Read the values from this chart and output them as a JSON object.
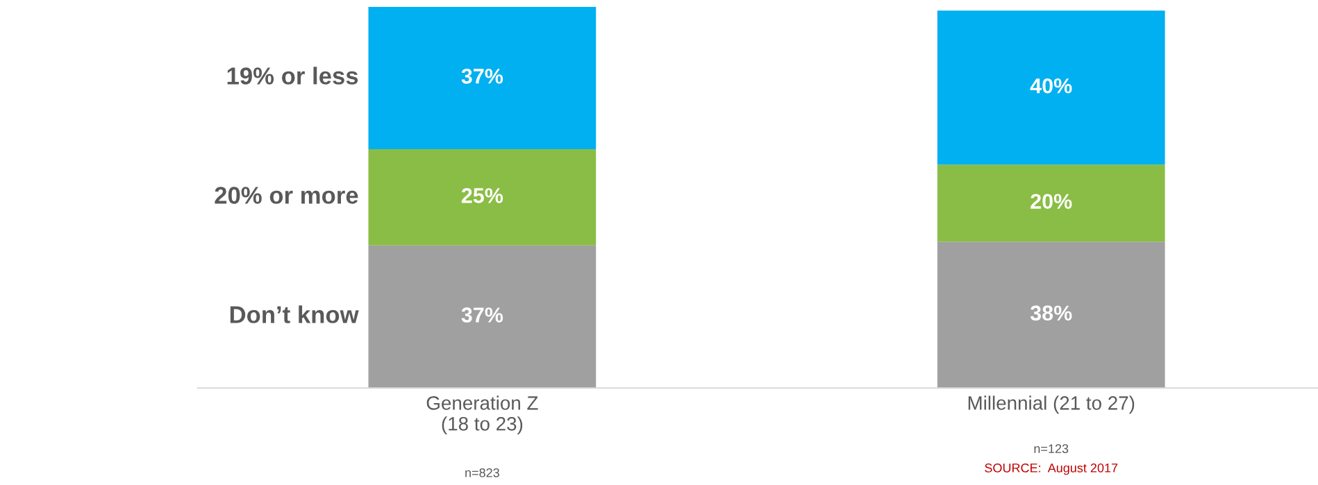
{
  "chart_data": {
    "type": "bar",
    "stacked": true,
    "categories": [
      "Generation Z\n(18 to 23)",
      "Millennial (21 to 27)"
    ],
    "series": [
      {
        "name": "Don’t know",
        "color": "#a0a0a0",
        "values": [
          37,
          38
        ],
        "value_labels": [
          "37%",
          "38%"
        ]
      },
      {
        "name": "20% or more",
        "color": "#8abd45",
        "values": [
          25,
          20
        ],
        "value_labels": [
          "25%",
          "20%"
        ]
      },
      {
        "name": "19% or less",
        "color": "#00b0f0",
        "values": [
          37,
          40
        ],
        "value_labels": [
          "37%",
          "40%"
        ]
      }
    ],
    "legend": false,
    "annotations": [
      "n=823",
      "n=123",
      "SOURCE:  August 2017"
    ]
  }
}
